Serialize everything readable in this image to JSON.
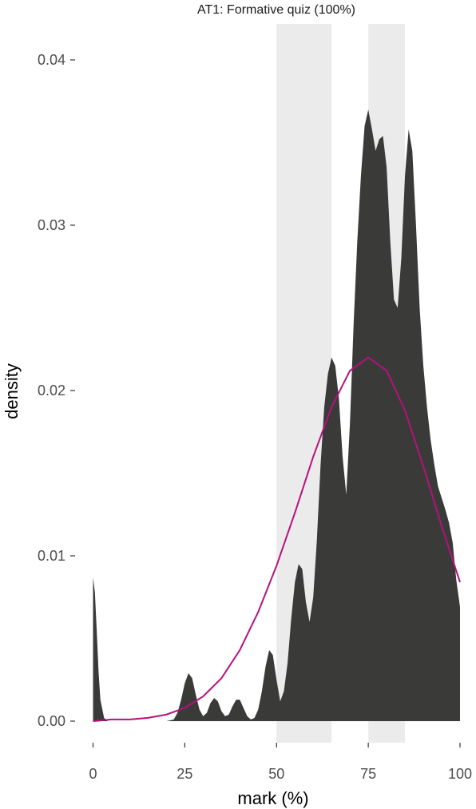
{
  "chart_data": {
    "type": "area",
    "title": "AT1: Formative quiz (100%)",
    "xlabel": "mark (%)",
    "ylabel": "density",
    "xlim": [
      0,
      100
    ],
    "ylim": [
      0,
      0.043
    ],
    "x_ticks": [
      0,
      25,
      50,
      75,
      100
    ],
    "x_tick_labels": [
      "0",
      "25",
      "50",
      "75",
      "100"
    ],
    "y_ticks": [
      0.0,
      0.01,
      0.02,
      0.03,
      0.04
    ],
    "y_tick_labels": [
      "0.00",
      "0.01",
      "0.02",
      "0.03",
      "0.04"
    ],
    "grid": false,
    "legend": "none",
    "shaded_bands": [
      {
        "x_start": 50,
        "x_end": 65,
        "color": "#ebebeb"
      },
      {
        "x_start": 75,
        "x_end": 85,
        "color": "#ebebeb"
      }
    ],
    "series": [
      {
        "kind": "density",
        "color": "#3a3b39",
        "x": [
          0,
          0.5,
          1,
          1.5,
          2,
          3,
          4,
          5,
          10,
          15,
          20,
          22,
          23,
          24,
          25,
          26,
          27,
          28,
          29,
          30,
          31,
          32,
          33,
          34,
          35,
          36,
          37,
          38,
          39,
          40,
          41,
          42,
          43,
          44,
          45,
          46,
          47,
          48,
          49,
          50,
          51,
          52,
          53,
          54,
          55,
          56,
          57,
          58,
          59,
          60,
          61,
          62,
          63,
          64,
          65,
          66,
          67,
          68,
          69,
          70,
          71,
          72,
          73,
          74,
          75,
          76,
          77,
          78,
          79,
          80,
          81,
          82,
          83,
          84,
          85,
          86,
          87,
          88,
          89,
          90,
          91,
          92,
          93,
          94,
          95,
          96,
          97,
          98,
          99,
          100
        ],
        "y": [
          0.0087,
          0.0078,
          0.0055,
          0.003,
          0.0013,
          0.0002,
          0,
          0,
          0,
          0,
          0,
          0.0001,
          0.0005,
          0.0013,
          0.0023,
          0.0029,
          0.0026,
          0.0016,
          0.0007,
          0.0003,
          0.0005,
          0.0011,
          0.0014,
          0.0012,
          0.0006,
          0.0003,
          0.0004,
          0.0009,
          0.0013,
          0.0013,
          0.0008,
          0.0003,
          0.0001,
          0.0002,
          0.0007,
          0.0018,
          0.0033,
          0.0043,
          0.004,
          0.0025,
          0.0012,
          0.0018,
          0.0035,
          0.0062,
          0.0084,
          0.0095,
          0.0092,
          0.0072,
          0.006,
          0.0075,
          0.011,
          0.0155,
          0.019,
          0.021,
          0.022,
          0.0215,
          0.0195,
          0.016,
          0.0137,
          0.018,
          0.024,
          0.029,
          0.033,
          0.036,
          0.037,
          0.0358,
          0.0345,
          0.0352,
          0.0354,
          0.0335,
          0.029,
          0.0255,
          0.025,
          0.028,
          0.033,
          0.0358,
          0.0345,
          0.03,
          0.025,
          0.0215,
          0.019,
          0.017,
          0.0155,
          0.0142,
          0.0135,
          0.0128,
          0.012,
          0.0108,
          0.0085,
          0.0069
        ]
      },
      {
        "kind": "normal-curve",
        "color": "#b5117e",
        "x": [
          0,
          5,
          10,
          15,
          20,
          25,
          30,
          35,
          40,
          45,
          50,
          55,
          60,
          65,
          70,
          75,
          80,
          85,
          90,
          95,
          100
        ],
        "y": [
          0.0,
          0.0001,
          0.0001,
          0.0002,
          0.0004,
          0.0008,
          0.0015,
          0.0026,
          0.0043,
          0.0066,
          0.0094,
          0.0126,
          0.016,
          0.019,
          0.0212,
          0.022,
          0.0212,
          0.0188,
          0.0154,
          0.0118,
          0.0084
        ]
      }
    ]
  }
}
